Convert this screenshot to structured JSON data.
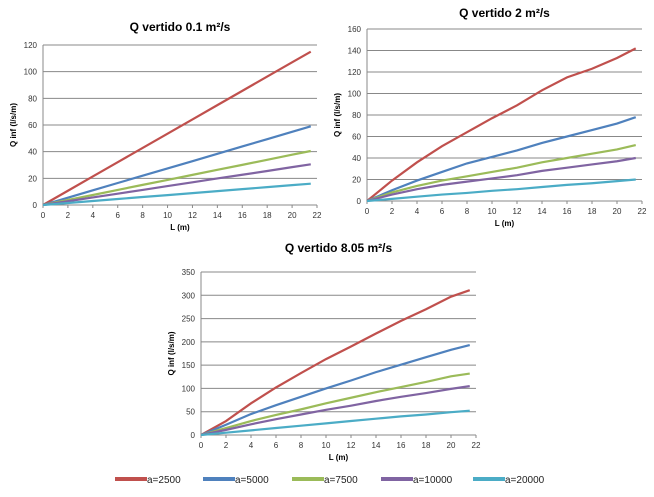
{
  "chart_data": [
    {
      "type": "line",
      "title": "Q vertido 0.1 m²/s",
      "xlabel": "L (m)",
      "ylabel": "Q inf (l/s/m)",
      "xlim": [
        0,
        22
      ],
      "ylim": [
        0,
        120
      ],
      "xticks": [
        0,
        2,
        4,
        6,
        8,
        10,
        12,
        14,
        16,
        18,
        20,
        22
      ],
      "yticks": [
        0,
        20,
        40,
        60,
        80,
        100,
        120
      ],
      "grid": "horizontal",
      "x": [
        0,
        2,
        4,
        6,
        8,
        10,
        12,
        14,
        16,
        18,
        20,
        21.5
      ],
      "series": [
        {
          "name": "a=2500",
          "values": [
            0,
            10.7,
            21.4,
            32.1,
            42.8,
            53.5,
            64.2,
            74.9,
            85.6,
            96.3,
            107,
            115
          ]
        },
        {
          "name": "a=5000",
          "values": [
            0,
            5.5,
            11,
            16.5,
            22,
            27.4,
            32.9,
            38.4,
            43.9,
            49.4,
            54.9,
            59
          ]
        },
        {
          "name": "a=7500",
          "values": [
            0,
            3.8,
            7.5,
            11.3,
            15.1,
            18.8,
            22.6,
            26.4,
            30.1,
            33.9,
            37.7,
            40.5
          ]
        },
        {
          "name": "a=10000",
          "values": [
            0,
            2.8,
            5.7,
            8.5,
            11.3,
            14.2,
            17,
            19.9,
            22.7,
            25.5,
            28.4,
            30.5
          ]
        },
        {
          "name": "a=20000",
          "values": [
            0,
            1.5,
            3,
            4.5,
            6,
            7.4,
            8.9,
            10.4,
            11.9,
            13.4,
            14.9,
            16
          ]
        }
      ]
    },
    {
      "type": "line",
      "title": "Q vertido 2 m²/s",
      "xlabel": "L (m)",
      "ylabel": "Q inf (l/s/m)",
      "xlim": [
        0,
        22
      ],
      "ylim": [
        0,
        160
      ],
      "xticks": [
        0,
        2,
        4,
        6,
        8,
        10,
        12,
        14,
        16,
        18,
        20,
        22
      ],
      "yticks": [
        0,
        20,
        40,
        60,
        80,
        100,
        120,
        140,
        160
      ],
      "grid": "horizontal",
      "x": [
        0,
        2,
        4,
        6,
        8,
        10,
        12,
        14,
        16,
        18,
        20,
        21.5
      ],
      "series": [
        {
          "name": "a=2500",
          "values": [
            0,
            19,
            36,
            51,
            64,
            77,
            89,
            103,
            115,
            123,
            133,
            142
          ]
        },
        {
          "name": "a=5000",
          "values": [
            0,
            10,
            19,
            27,
            35,
            41,
            47,
            54,
            60,
            66,
            72,
            78
          ]
        },
        {
          "name": "a=7500",
          "values": [
            0,
            8,
            14,
            19,
            23,
            27,
            31,
            36,
            40,
            44,
            48,
            52
          ]
        },
        {
          "name": "a=10000",
          "values": [
            0,
            6,
            11,
            15,
            18,
            21,
            24,
            28,
            31,
            34,
            37,
            40
          ]
        },
        {
          "name": "a=20000",
          "values": [
            0,
            2,
            4,
            6,
            7.5,
            9.5,
            11,
            13,
            15,
            16.5,
            18.5,
            20
          ]
        }
      ]
    },
    {
      "type": "line",
      "title": "Q vertido 8.05 m²/s",
      "xlabel": "L (m)",
      "ylabel": "Q inf (l/s/m)",
      "xlim": [
        0,
        22
      ],
      "ylim": [
        0,
        350
      ],
      "xticks": [
        0,
        2,
        4,
        6,
        8,
        10,
        12,
        14,
        16,
        18,
        20,
        22
      ],
      "yticks": [
        0,
        50,
        100,
        150,
        200,
        250,
        300,
        350
      ],
      "grid": "horizontal",
      "x": [
        0,
        2,
        4,
        6,
        8,
        10,
        12,
        14,
        16,
        18,
        20,
        21.5
      ],
      "series": [
        {
          "name": "a=2500",
          "values": [
            0,
            30,
            68,
            102,
            133,
            163,
            190,
            218,
            245,
            270,
            297,
            311
          ]
        },
        {
          "name": "a=5000",
          "values": [
            0,
            22,
            45,
            64,
            82,
            100,
            117,
            135,
            151,
            167,
            183,
            193
          ]
        },
        {
          "name": "a=7500",
          "values": [
            0,
            15,
            30,
            43,
            55,
            68,
            80,
            92,
            103,
            114,
            126,
            132
          ]
        },
        {
          "name": "a=10000",
          "values": [
            0,
            11,
            23,
            34,
            44,
            54,
            63,
            73,
            82,
            90,
            99,
            105
          ]
        },
        {
          "name": "a=20000",
          "values": [
            0,
            5,
            10,
            15,
            20,
            25,
            30,
            35,
            40,
            44,
            49,
            52
          ]
        }
      ]
    }
  ],
  "legend": {
    "placement": "bottom",
    "items": [
      "a=2500",
      "a=5000",
      "a=7500",
      "a=10000",
      "a=20000"
    ]
  },
  "colors": [
    "#c0504d",
    "#4f81bd",
    "#9bbb59",
    "#8064a2",
    "#4bacc6"
  ]
}
